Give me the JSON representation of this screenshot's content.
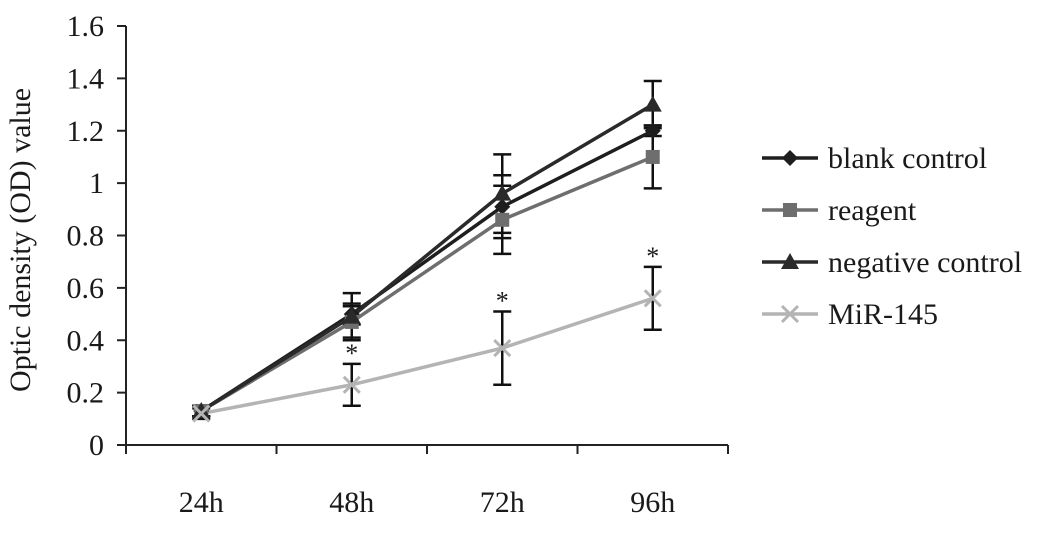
{
  "chart_data": {
    "type": "line",
    "title": "",
    "xlabel": "",
    "ylabel": "Optic density (OD) value",
    "categories": [
      "24h",
      "48h",
      "72h",
      "96h"
    ],
    "ylim": [
      0,
      1.6
    ],
    "y_ticks": [
      "0",
      "0.2",
      "0.4",
      "0.6",
      "0.8",
      "1",
      "1.2",
      "1.4",
      "1.6"
    ],
    "y_tick_values": [
      0,
      0.2,
      0.4,
      0.6,
      0.8,
      1.0,
      1.2,
      1.4,
      1.6
    ],
    "grid": false,
    "legend_position": "right",
    "series": [
      {
        "name": "blank control",
        "marker": "diamond",
        "color": "#1e1e1e",
        "values": [
          0.13,
          0.5,
          0.91,
          1.2
        ],
        "errors": [
          0.02,
          0.04,
          0.12,
          0.02
        ]
      },
      {
        "name": "reagent",
        "marker": "square",
        "color": "#6e6e6e",
        "values": [
          0.13,
          0.47,
          0.86,
          1.1
        ],
        "errors": [
          0.02,
          0.06,
          0.13,
          0.12
        ]
      },
      {
        "name": "negative control",
        "marker": "triangle",
        "color": "#2a2a2a",
        "values": [
          0.13,
          0.49,
          0.96,
          1.3
        ],
        "errors": [
          0.02,
          0.09,
          0.15,
          0.09
        ]
      },
      {
        "name": "MiR-145",
        "marker": "x",
        "color": "#b4b4b4",
        "values": [
          0.12,
          0.23,
          0.37,
          0.56
        ],
        "errors": [
          0.02,
          0.08,
          0.14,
          0.12
        ]
      }
    ],
    "annotations": [
      {
        "text": "*",
        "category": "48h",
        "series": "MiR-145"
      },
      {
        "text": "*",
        "category": "72h",
        "series": "MiR-145"
      },
      {
        "text": "*",
        "category": "96h",
        "series": "MiR-145"
      }
    ]
  }
}
